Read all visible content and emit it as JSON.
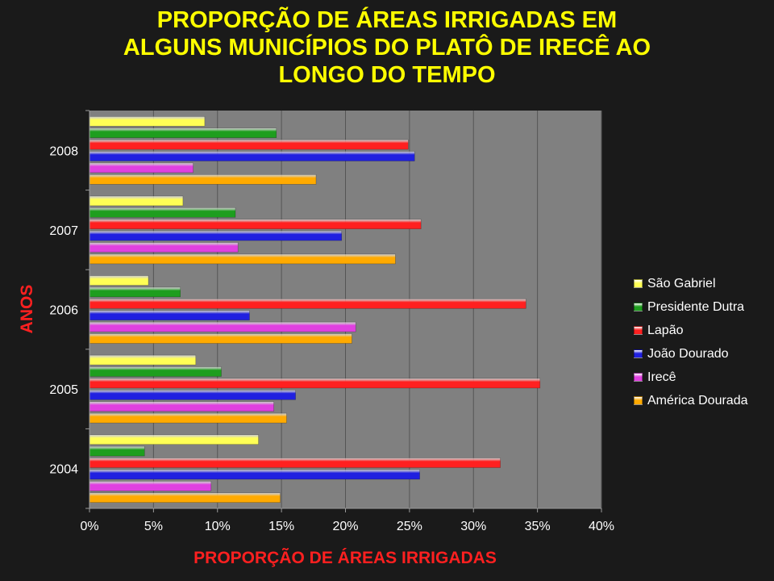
{
  "chart_data": {
    "type": "bar",
    "orientation": "horizontal",
    "title_lines": [
      "PROPORÇÃO DE ÁREAS IRRIGADAS EM",
      "ALGUNS MUNICÍPIOS DO PLATÔ DE IRECÊ AO",
      "LONGO DO TEMPO"
    ],
    "xlabel": "PROPORÇÃO DE ÁREAS IRRIGADAS",
    "ylabel": "ANOS",
    "categories": [
      "2008",
      "2007",
      "2006",
      "2005",
      "2004"
    ],
    "xlim": [
      0,
      40
    ],
    "xticks": [
      "0%",
      "5%",
      "10%",
      "15%",
      "20%",
      "25%",
      "30%",
      "35%",
      "40%"
    ],
    "grid": "vertical",
    "legend_position": "right",
    "series": [
      {
        "name": "São Gabriel",
        "color": "#ffff55",
        "values": [
          9.0,
          7.3,
          4.6,
          8.3,
          13.2
        ]
      },
      {
        "name": "Presidente Dutra",
        "color": "#1e9e1e",
        "values": [
          14.6,
          11.4,
          7.1,
          10.3,
          4.3
        ]
      },
      {
        "name": "Lapão",
        "color": "#ff2020",
        "values": [
          24.9,
          25.9,
          34.1,
          35.2,
          32.1
        ]
      },
      {
        "name": "João Dourado",
        "color": "#2020e0",
        "values": [
          25.4,
          19.7,
          12.5,
          16.1,
          25.8
        ]
      },
      {
        "name": "Irecê",
        "color": "#e040e0",
        "values": [
          8.1,
          11.6,
          20.8,
          14.4,
          9.5
        ]
      },
      {
        "name": "América Dourada",
        "color": "#ffaa00",
        "values": [
          17.7,
          23.9,
          20.5,
          15.4,
          14.9
        ]
      }
    ]
  }
}
